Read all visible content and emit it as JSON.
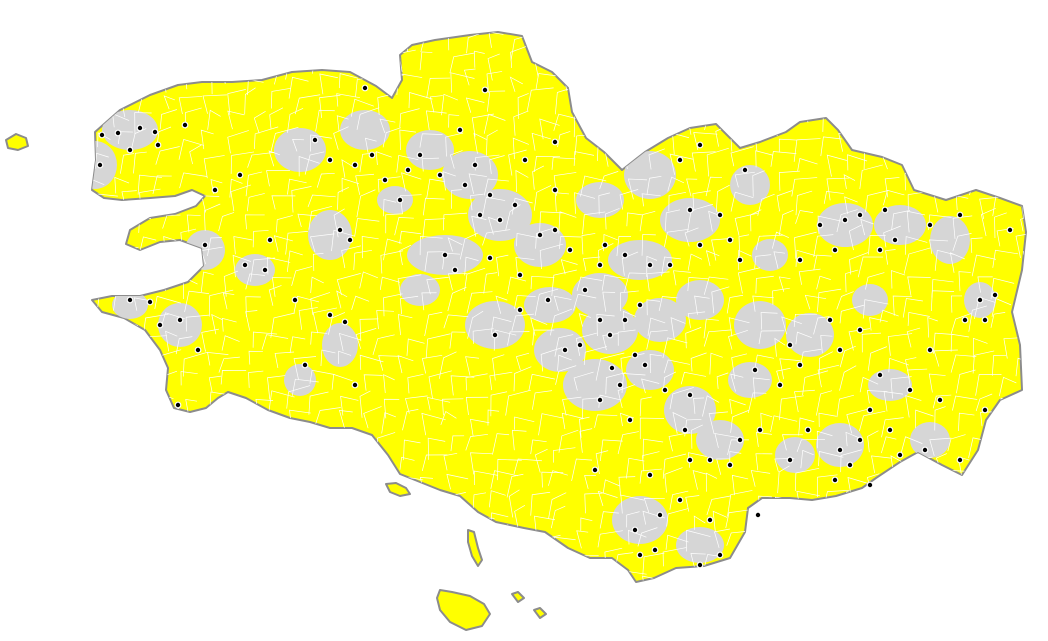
{
  "map": {
    "colors": {
      "background": "#ffffff",
      "coast": "#8c8c8c",
      "base_fill": "#ffff00",
      "grey_fill": "#d6d6d6",
      "commune_borders": "#ffffff",
      "marker": "#000000",
      "marker_ring": "#ffffff"
    },
    "legend": "none",
    "title": ""
  }
}
